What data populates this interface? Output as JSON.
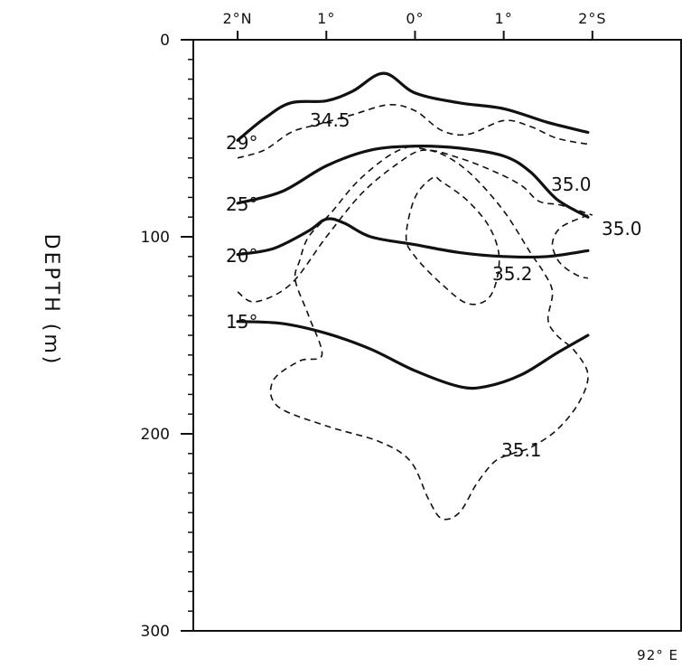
{
  "chart_data": {
    "type": "line",
    "title": "",
    "ylabel": "DEPTH   (m)",
    "y_tick_labels": [
      "0",
      "100",
      "200",
      "300"
    ],
    "ylim": [
      300,
      0
    ],
    "x_tick_labels": [
      "2°N",
      "1°",
      "0°",
      "1°",
      "2°S"
    ],
    "x_tick_values": [
      2,
      1,
      0,
      -1,
      -2
    ],
    "xlim": [
      2.5,
      -3.0
    ],
    "corner_label": "92° E",
    "temperature_isotherms": [
      {
        "label": "29°",
        "style": "solid",
        "x": [
          2.0,
          1.7,
          1.4,
          1.0,
          0.7,
          0.35,
          0.0,
          -0.5,
          -1.0,
          -1.5,
          -1.95
        ],
        "y": [
          51,
          40,
          32,
          31,
          26,
          17,
          27,
          32,
          35,
          42,
          47
        ]
      },
      {
        "label": "25°",
        "style": "solid",
        "x": [
          2.0,
          1.5,
          1.0,
          0.5,
          0.0,
          -0.5,
          -1.0,
          -1.3,
          -1.6,
          -1.95
        ],
        "y": [
          83,
          77,
          64,
          56,
          54,
          55,
          59,
          67,
          81,
          90
        ]
      },
      {
        "label": "20°",
        "style": "solid",
        "x": [
          2.0,
          1.6,
          1.2,
          1.0,
          0.8,
          0.5,
          0.0,
          -0.5,
          -1.0,
          -1.5,
          -1.95
        ],
        "y": [
          109,
          106,
          97,
          91,
          93,
          100,
          104,
          108,
          110,
          110,
          107
        ]
      },
      {
        "label": "15°",
        "style": "solid",
        "x": [
          2.0,
          1.5,
          1.0,
          0.5,
          0.0,
          -0.5,
          -0.8,
          -1.2,
          -1.6,
          -1.95
        ],
        "y": [
          143,
          144,
          149,
          157,
          168,
          176,
          176,
          170,
          159,
          150
        ]
      }
    ],
    "salinity_isohalines": [
      {
        "label": "34.5",
        "style": "dashed",
        "x": [
          2.0,
          1.7,
          1.4,
          1.1,
          0.7,
          0.3,
          0.0,
          -0.3,
          -0.6,
          -1.0,
          -1.3,
          -1.6,
          -1.95
        ],
        "y": [
          60,
          56,
          47,
          43,
          38,
          33,
          36,
          46,
          48,
          41,
          44,
          50,
          53
        ]
      },
      {
        "label": "35.0",
        "style": "dashed",
        "x": [
          2.0,
          1.8,
          1.4,
          1.0,
          0.6,
          0.2,
          -0.1,
          -0.5,
          -0.9,
          -1.2,
          -1.4,
          -1.65,
          -2.0
        ],
        "y": [
          128,
          133,
          124,
          100,
          78,
          63,
          56,
          60,
          67,
          74,
          82,
          84,
          89
        ]
      },
      {
        "label": "35.0",
        "style": "dashed",
        "x": [
          -1.95,
          -1.65,
          -1.55,
          -1.6,
          -1.7,
          -1.85,
          -1.95
        ],
        "y": [
          89,
          95,
          103,
          111,
          116,
          120,
          121
        ]
      },
      {
        "label": "35.2",
        "style": "dashed",
        "x": [
          -0.2,
          0.0,
          0.1,
          0.0,
          -0.3,
          -0.6,
          -0.85,
          -0.95,
          -0.85,
          -0.6,
          -0.3
        ],
        "y": [
          70,
          80,
          100,
          110,
          124,
          134,
          130,
          112,
          96,
          82,
          72
        ]
      },
      {
        "label": "35.1",
        "style": "dashed",
        "x": [
          0.05,
          0.3,
          0.65,
          0.95,
          1.2,
          1.3,
          1.35,
          1.2,
          1.05,
          1.3,
          1.6,
          1.55,
          1.0,
          0.4,
          0.05,
          -0.15,
          -0.3,
          -0.5,
          -0.7,
          -0.9,
          -1.1,
          -1.3,
          -1.6,
          -1.85,
          -1.95,
          -1.8,
          -1.6,
          -1.5,
          -1.55,
          -1.45,
          -1.3,
          -1.05,
          -0.8,
          -0.55,
          -0.3,
          -0.05
        ],
        "y": [
          54,
          59,
          72,
          88,
          100,
          112,
          122,
          140,
          160,
          163,
          173,
          186,
          196,
          204,
          214,
          233,
          243,
          240,
          225,
          214,
          210,
          207,
          198,
          184,
          170,
          158,
          150,
          142,
          128,
          118,
          108,
          90,
          76,
          65,
          58,
          55
        ]
      }
    ],
    "grid": false,
    "legend": "none"
  }
}
